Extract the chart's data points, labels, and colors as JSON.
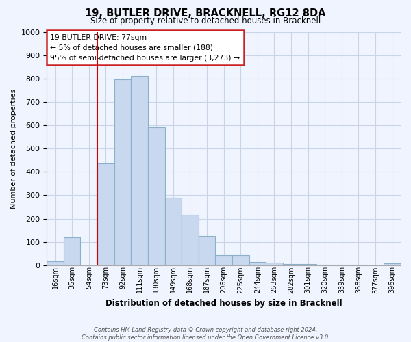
{
  "title": "19, BUTLER DRIVE, BRACKNELL, RG12 8DA",
  "subtitle": "Size of property relative to detached houses in Bracknell",
  "xlabel": "Distribution of detached houses by size in Bracknell",
  "ylabel": "Number of detached properties",
  "bar_labels": [
    "16sqm",
    "35sqm",
    "54sqm",
    "73sqm",
    "92sqm",
    "111sqm",
    "130sqm",
    "149sqm",
    "168sqm",
    "187sqm",
    "206sqm",
    "225sqm",
    "244sqm",
    "263sqm",
    "282sqm",
    "301sqm",
    "320sqm",
    "339sqm",
    "358sqm",
    "377sqm",
    "396sqm"
  ],
  "bar_values": [
    18,
    120,
    0,
    435,
    795,
    810,
    590,
    290,
    215,
    125,
    42,
    42,
    15,
    10,
    5,
    5,
    2,
    1,
    1,
    0,
    8
  ],
  "bar_color": "#c8d8ee",
  "bar_edge_color": "#8ab0cc",
  "vline_color": "#cc0000",
  "ylim": [
    0,
    1000
  ],
  "yticks": [
    0,
    100,
    200,
    300,
    400,
    500,
    600,
    700,
    800,
    900,
    1000
  ],
  "annotation_title": "19 BUTLER DRIVE: 77sqm",
  "annotation_line1": "← 5% of detached houses are smaller (188)",
  "annotation_line2": "95% of semi-detached houses are larger (3,273) →",
  "annotation_box_color": "#ffffff",
  "annotation_box_edge": "#cc2222",
  "footer_line1": "Contains HM Land Registry data © Crown copyright and database right 2024.",
  "footer_line2": "Contains public sector information licensed under the Open Government Licence v3.0.",
  "background_color": "#f0f4ff",
  "grid_color": "#c8d4e8"
}
